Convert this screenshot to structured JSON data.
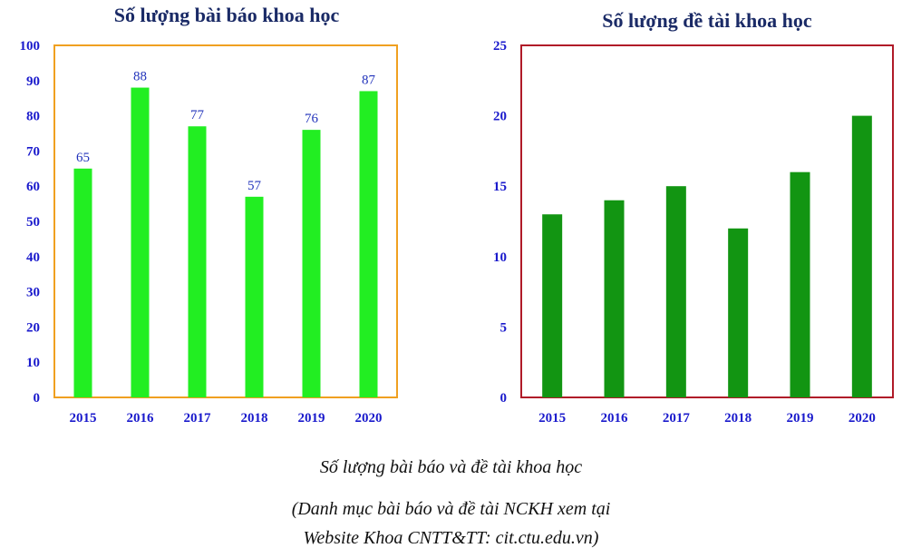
{
  "chart_data": [
    {
      "type": "bar",
      "title": "Số lượng bài báo khoa học",
      "categories": [
        "2015",
        "2016",
        "2017",
        "2018",
        "2019",
        "2020"
      ],
      "values": [
        65,
        88,
        77,
        57,
        76,
        87
      ],
      "ylim": [
        0,
        100
      ],
      "yticks": [
        "0",
        "10",
        "20",
        "30",
        "40",
        "50",
        "60",
        "70",
        "80",
        "90",
        "100"
      ],
      "data_labels": true,
      "bar_color": "#22ee22",
      "frame_color": "#f0a020",
      "grid": false
    },
    {
      "type": "bar",
      "title": "Số lượng đề tài khoa học",
      "categories": [
        "2015",
        "2016",
        "2017",
        "2018",
        "2019",
        "2020"
      ],
      "values": [
        13,
        14,
        15,
        12,
        16,
        20
      ],
      "ylim": [
        0,
        25
      ],
      "yticks": [
        "0",
        "5",
        "10",
        "15",
        "20",
        "25"
      ],
      "data_labels": false,
      "bar_color": "#129512",
      "frame_color": "#b01a28",
      "grid": false
    }
  ],
  "caption": {
    "line1": "Số lượng bài báo và đề tài khoa học",
    "line2": "(Danh mục bài báo và đề tài NCKH  xem tại",
    "line3": "Website Khoa CNTT&TT: cit.ctu.edu.vn)"
  },
  "colors": {
    "axis_text": "#1a1acc",
    "data_label": "#2233bb",
    "title": "#1a2a66"
  }
}
